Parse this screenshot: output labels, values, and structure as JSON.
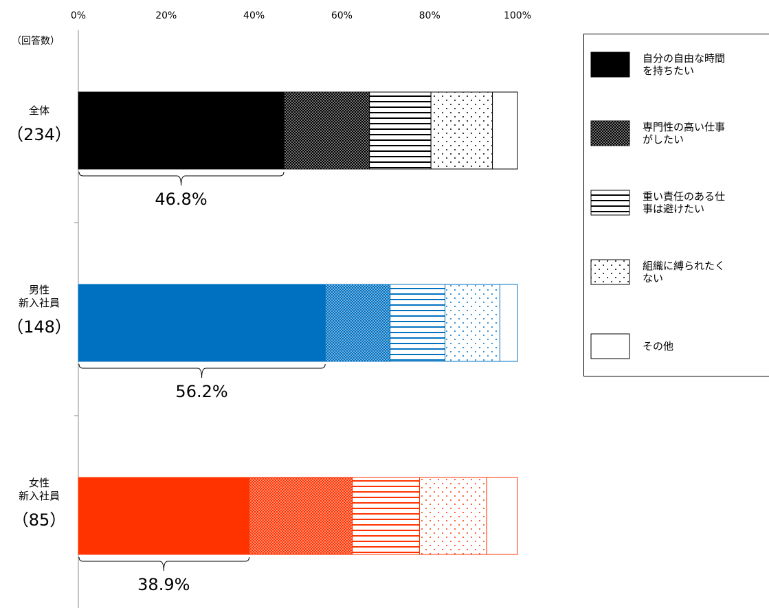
{
  "chart_data": {
    "type": "bar",
    "orientation": "horizontal",
    "stacked": true,
    "percent": true,
    "x_ticks": [
      "0%",
      "20%",
      "40%",
      "60%",
      "80%",
      "100%"
    ],
    "xlim": [
      0,
      100
    ],
    "y_header": "（回答数）",
    "grid": false,
    "legend_position": "right",
    "categories": [
      {
        "label_lines": [
          "全体"
        ],
        "count": "（234）",
        "color": "#000000",
        "callout": "46.8%"
      },
      {
        "label_lines": [
          "男性",
          "新入社員"
        ],
        "count": "（148）",
        "color": "#0070C0",
        "callout": "56.2%"
      },
      {
        "label_lines": [
          "女性",
          "新入社員"
        ],
        "count": "（85）",
        "color": "#FF3300",
        "callout": "38.9%"
      }
    ],
    "series": [
      {
        "name_lines": [
          "自分の自由な時間",
          "を持ちたい"
        ],
        "pattern": "solid",
        "values": [
          46.8,
          56.2,
          38.9
        ]
      },
      {
        "name_lines": [
          "専門性の高い仕事",
          "がしたい"
        ],
        "pattern": "dense-dots",
        "values": [
          19.5,
          14.8,
          23.5
        ]
      },
      {
        "name_lines": [
          "重い責任のある仕",
          "事は避けたい"
        ],
        "pattern": "horizontal-lines",
        "values": [
          14.0,
          12.5,
          15.3
        ]
      },
      {
        "name_lines": [
          "組織に縛られたく",
          "ない"
        ],
        "pattern": "sparse-dots",
        "values": [
          14.0,
          12.5,
          15.3
        ]
      },
      {
        "name_lines": [
          "その他"
        ],
        "pattern": "blank",
        "values": [
          5.7,
          4.0,
          7.0
        ]
      }
    ]
  }
}
